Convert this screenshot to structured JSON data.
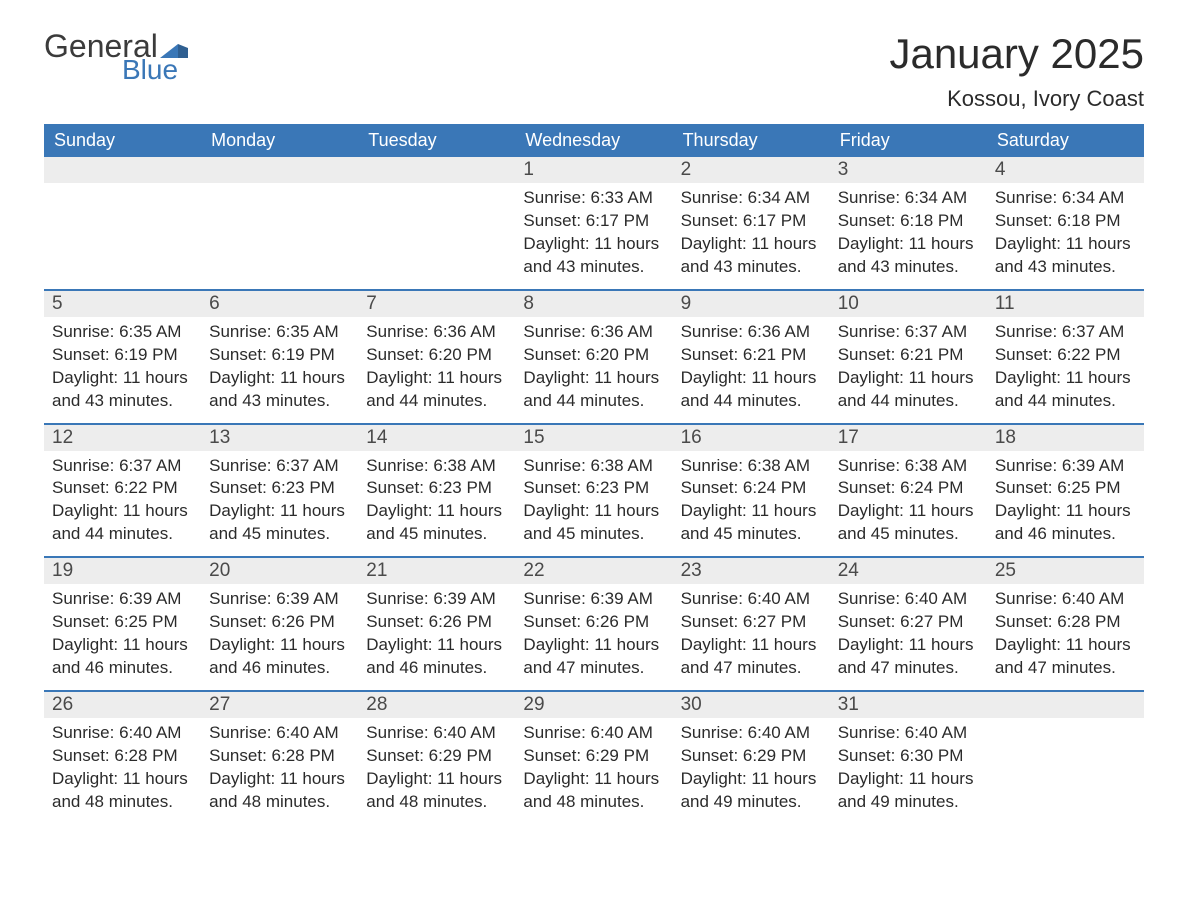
{
  "brand": {
    "general": "General",
    "blue": "Blue",
    "shape_color": "#3a77b7"
  },
  "title": "January 2025",
  "location": "Kossou, Ivory Coast",
  "colors": {
    "header_bg": "#3a77b7",
    "header_text": "#ffffff",
    "daynum_bg": "#ededed",
    "row_border": "#3a77b7",
    "body_text": "#2b2b2b"
  },
  "day_names": [
    "Sunday",
    "Monday",
    "Tuesday",
    "Wednesday",
    "Thursday",
    "Friday",
    "Saturday"
  ],
  "weeks": [
    [
      null,
      null,
      null,
      {
        "n": "1",
        "sunrise": "6:33 AM",
        "sunset": "6:17 PM",
        "daylight": "11 hours and 43 minutes."
      },
      {
        "n": "2",
        "sunrise": "6:34 AM",
        "sunset": "6:17 PM",
        "daylight": "11 hours and 43 minutes."
      },
      {
        "n": "3",
        "sunrise": "6:34 AM",
        "sunset": "6:18 PM",
        "daylight": "11 hours and 43 minutes."
      },
      {
        "n": "4",
        "sunrise": "6:34 AM",
        "sunset": "6:18 PM",
        "daylight": "11 hours and 43 minutes."
      }
    ],
    [
      {
        "n": "5",
        "sunrise": "6:35 AM",
        "sunset": "6:19 PM",
        "daylight": "11 hours and 43 minutes."
      },
      {
        "n": "6",
        "sunrise": "6:35 AM",
        "sunset": "6:19 PM",
        "daylight": "11 hours and 43 minutes."
      },
      {
        "n": "7",
        "sunrise": "6:36 AM",
        "sunset": "6:20 PM",
        "daylight": "11 hours and 44 minutes."
      },
      {
        "n": "8",
        "sunrise": "6:36 AM",
        "sunset": "6:20 PM",
        "daylight": "11 hours and 44 minutes."
      },
      {
        "n": "9",
        "sunrise": "6:36 AM",
        "sunset": "6:21 PM",
        "daylight": "11 hours and 44 minutes."
      },
      {
        "n": "10",
        "sunrise": "6:37 AM",
        "sunset": "6:21 PM",
        "daylight": "11 hours and 44 minutes."
      },
      {
        "n": "11",
        "sunrise": "6:37 AM",
        "sunset": "6:22 PM",
        "daylight": "11 hours and 44 minutes."
      }
    ],
    [
      {
        "n": "12",
        "sunrise": "6:37 AM",
        "sunset": "6:22 PM",
        "daylight": "11 hours and 44 minutes."
      },
      {
        "n": "13",
        "sunrise": "6:37 AM",
        "sunset": "6:23 PM",
        "daylight": "11 hours and 45 minutes."
      },
      {
        "n": "14",
        "sunrise": "6:38 AM",
        "sunset": "6:23 PM",
        "daylight": "11 hours and 45 minutes."
      },
      {
        "n": "15",
        "sunrise": "6:38 AM",
        "sunset": "6:23 PM",
        "daylight": "11 hours and 45 minutes."
      },
      {
        "n": "16",
        "sunrise": "6:38 AM",
        "sunset": "6:24 PM",
        "daylight": "11 hours and 45 minutes."
      },
      {
        "n": "17",
        "sunrise": "6:38 AM",
        "sunset": "6:24 PM",
        "daylight": "11 hours and 45 minutes."
      },
      {
        "n": "18",
        "sunrise": "6:39 AM",
        "sunset": "6:25 PM",
        "daylight": "11 hours and 46 minutes."
      }
    ],
    [
      {
        "n": "19",
        "sunrise": "6:39 AM",
        "sunset": "6:25 PM",
        "daylight": "11 hours and 46 minutes."
      },
      {
        "n": "20",
        "sunrise": "6:39 AM",
        "sunset": "6:26 PM",
        "daylight": "11 hours and 46 minutes."
      },
      {
        "n": "21",
        "sunrise": "6:39 AM",
        "sunset": "6:26 PM",
        "daylight": "11 hours and 46 minutes."
      },
      {
        "n": "22",
        "sunrise": "6:39 AM",
        "sunset": "6:26 PM",
        "daylight": "11 hours and 47 minutes."
      },
      {
        "n": "23",
        "sunrise": "6:40 AM",
        "sunset": "6:27 PM",
        "daylight": "11 hours and 47 minutes."
      },
      {
        "n": "24",
        "sunrise": "6:40 AM",
        "sunset": "6:27 PM",
        "daylight": "11 hours and 47 minutes."
      },
      {
        "n": "25",
        "sunrise": "6:40 AM",
        "sunset": "6:28 PM",
        "daylight": "11 hours and 47 minutes."
      }
    ],
    [
      {
        "n": "26",
        "sunrise": "6:40 AM",
        "sunset": "6:28 PM",
        "daylight": "11 hours and 48 minutes."
      },
      {
        "n": "27",
        "sunrise": "6:40 AM",
        "sunset": "6:28 PM",
        "daylight": "11 hours and 48 minutes."
      },
      {
        "n": "28",
        "sunrise": "6:40 AM",
        "sunset": "6:29 PM",
        "daylight": "11 hours and 48 minutes."
      },
      {
        "n": "29",
        "sunrise": "6:40 AM",
        "sunset": "6:29 PM",
        "daylight": "11 hours and 48 minutes."
      },
      {
        "n": "30",
        "sunrise": "6:40 AM",
        "sunset": "6:29 PM",
        "daylight": "11 hours and 49 minutes."
      },
      {
        "n": "31",
        "sunrise": "6:40 AM",
        "sunset": "6:30 PM",
        "daylight": "11 hours and 49 minutes."
      },
      null
    ]
  ],
  "labels": {
    "sunrise": "Sunrise: ",
    "sunset": "Sunset: ",
    "daylight": "Daylight: "
  }
}
